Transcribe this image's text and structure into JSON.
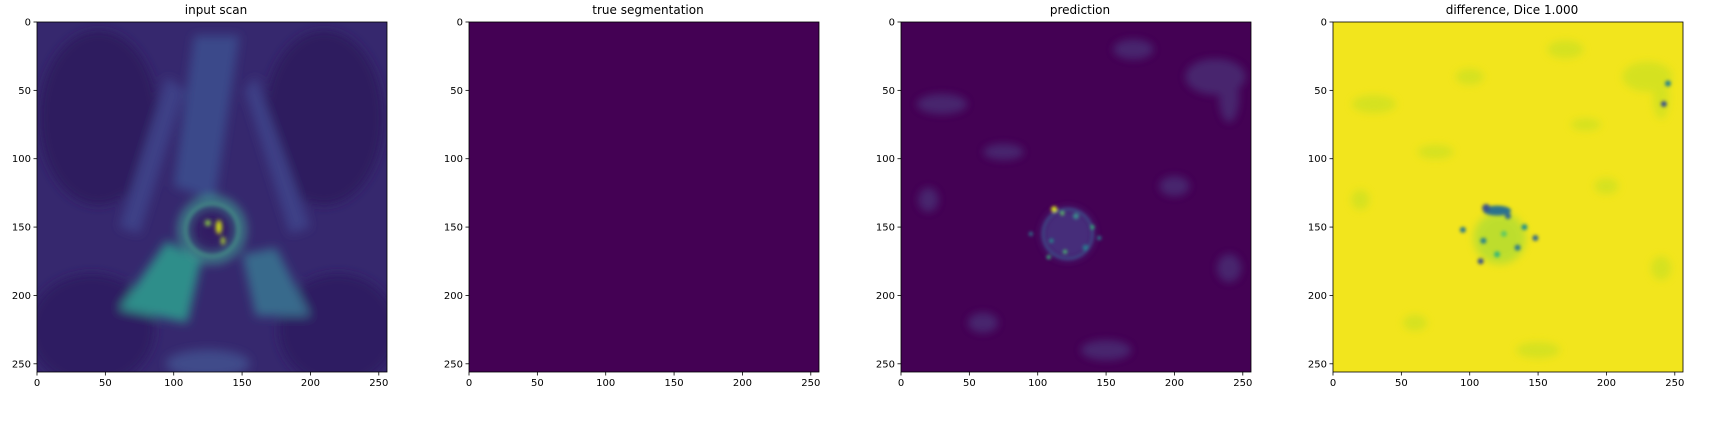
{
  "chart_data": [
    {
      "type": "heatmap",
      "title": "input scan",
      "colormap": "viridis",
      "image_size": [
        256,
        256
      ],
      "xlim": [
        0,
        256
      ],
      "ylim": [
        256,
        0
      ],
      "xticks": [
        0,
        50,
        100,
        150,
        200,
        250
      ],
      "yticks": [
        0,
        50,
        100,
        150,
        200,
        250
      ],
      "xlabel": "",
      "ylabel": "",
      "content": "pelvic MRI slice, dark purple background with teal/green tissue and bright yellow spots near ring at center (~130,150)"
    },
    {
      "type": "heatmap",
      "title": "true segmentation",
      "colormap": "viridis",
      "image_size": [
        256,
        256
      ],
      "xlim": [
        0,
        256
      ],
      "ylim": [
        256,
        0
      ],
      "xticks": [
        0,
        50,
        100,
        150,
        200,
        250
      ],
      "yticks": [
        0,
        50,
        100,
        150,
        200,
        250
      ],
      "xlabel": "",
      "ylabel": "",
      "uniform_color": "#440154"
    },
    {
      "type": "heatmap",
      "title": "prediction",
      "colormap": "viridis",
      "image_size": [
        256,
        256
      ],
      "xlim": [
        0,
        256
      ],
      "ylim": [
        256,
        0
      ],
      "xticks": [
        0,
        50,
        100,
        150,
        200,
        250
      ],
      "yticks": [
        0,
        50,
        100,
        150,
        200,
        250
      ],
      "xlabel": "",
      "ylabel": "",
      "content": "mostly dark purple with faint teal texture, bright speckles around (120,150)"
    },
    {
      "type": "heatmap",
      "title": "difference, Dice 1.000",
      "colormap": "viridis",
      "image_size": [
        256,
        256
      ],
      "xlim": [
        0,
        256
      ],
      "ylim": [
        256,
        0
      ],
      "xticks": [
        0,
        50,
        100,
        150,
        200,
        250
      ],
      "yticks": [
        0,
        50,
        100,
        150,
        200,
        250
      ],
      "xlabel": "",
      "ylabel": "",
      "content": "mostly yellow with faint green patches and dark blue/teal cluster around (120,150)"
    }
  ]
}
